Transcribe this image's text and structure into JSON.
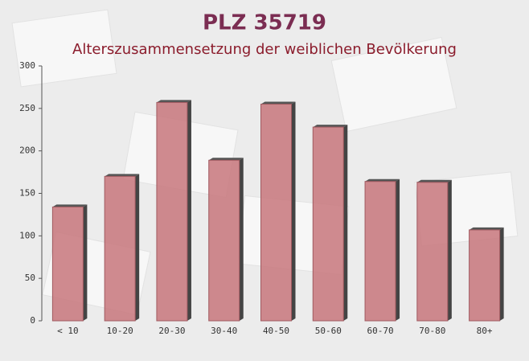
{
  "chart_data": {
    "type": "bar",
    "title": "PLZ 35719",
    "subtitle": "Alterszusammensetzung der weiblichen Bevölkerung",
    "categories": [
      "< 10",
      "10-20",
      "20-30",
      "30-40",
      "40-50",
      "50-60",
      "60-70",
      "70-80",
      "80+"
    ],
    "values": [
      134,
      170,
      257,
      189,
      255,
      228,
      164,
      163,
      107
    ],
    "color": "#c8777c",
    "ylim": [
      0,
      300
    ],
    "yticks": [
      0,
      50,
      100,
      150,
      200,
      250,
      300
    ]
  }
}
